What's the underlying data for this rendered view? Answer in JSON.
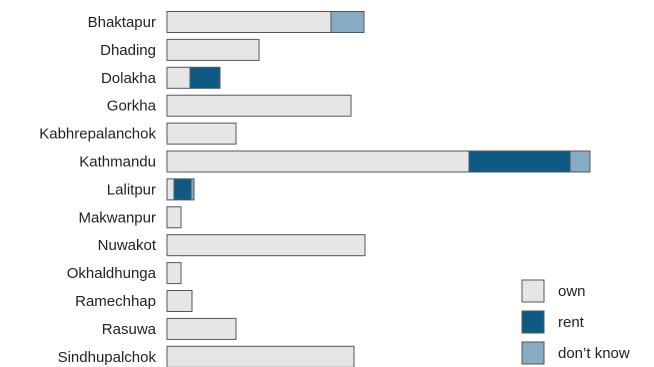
{
  "chart_data": {
    "type": "bar",
    "orientation": "horizontal",
    "stacked": true,
    "categories": [
      "Bhaktapur",
      "Dhading",
      "Dolakha",
      "Gorkha",
      "Kabhrepalanchok",
      "Kathmandu",
      "Lalitpur",
      "Makwanpur",
      "Nuwakot",
      "Okhaldhunga",
      "Ramechhap",
      "Rasuwa",
      "Sindhupalchok"
    ],
    "series": [
      {
        "name": "own",
        "color": "#e6e6e6",
        "values": [
          164,
          92,
          23,
          184,
          69,
          302,
          7,
          14,
          198,
          14,
          25,
          69,
          187
        ]
      },
      {
        "name": "rent",
        "color": "#0d5a85",
        "values": [
          0,
          0,
          30,
          0,
          0,
          101,
          17,
          0,
          0,
          0,
          0,
          0,
          0
        ]
      },
      {
        "name": "don’t know",
        "color": "#86acc4",
        "values": [
          33,
          0,
          0,
          0,
          0,
          20,
          3,
          0,
          0,
          0,
          0,
          0,
          0
        ]
      }
    ],
    "title": "",
    "xlabel": "",
    "ylabel": "",
    "xlim": [
      0,
      480
    ],
    "grid": false,
    "legend_position": "bottom-right"
  }
}
